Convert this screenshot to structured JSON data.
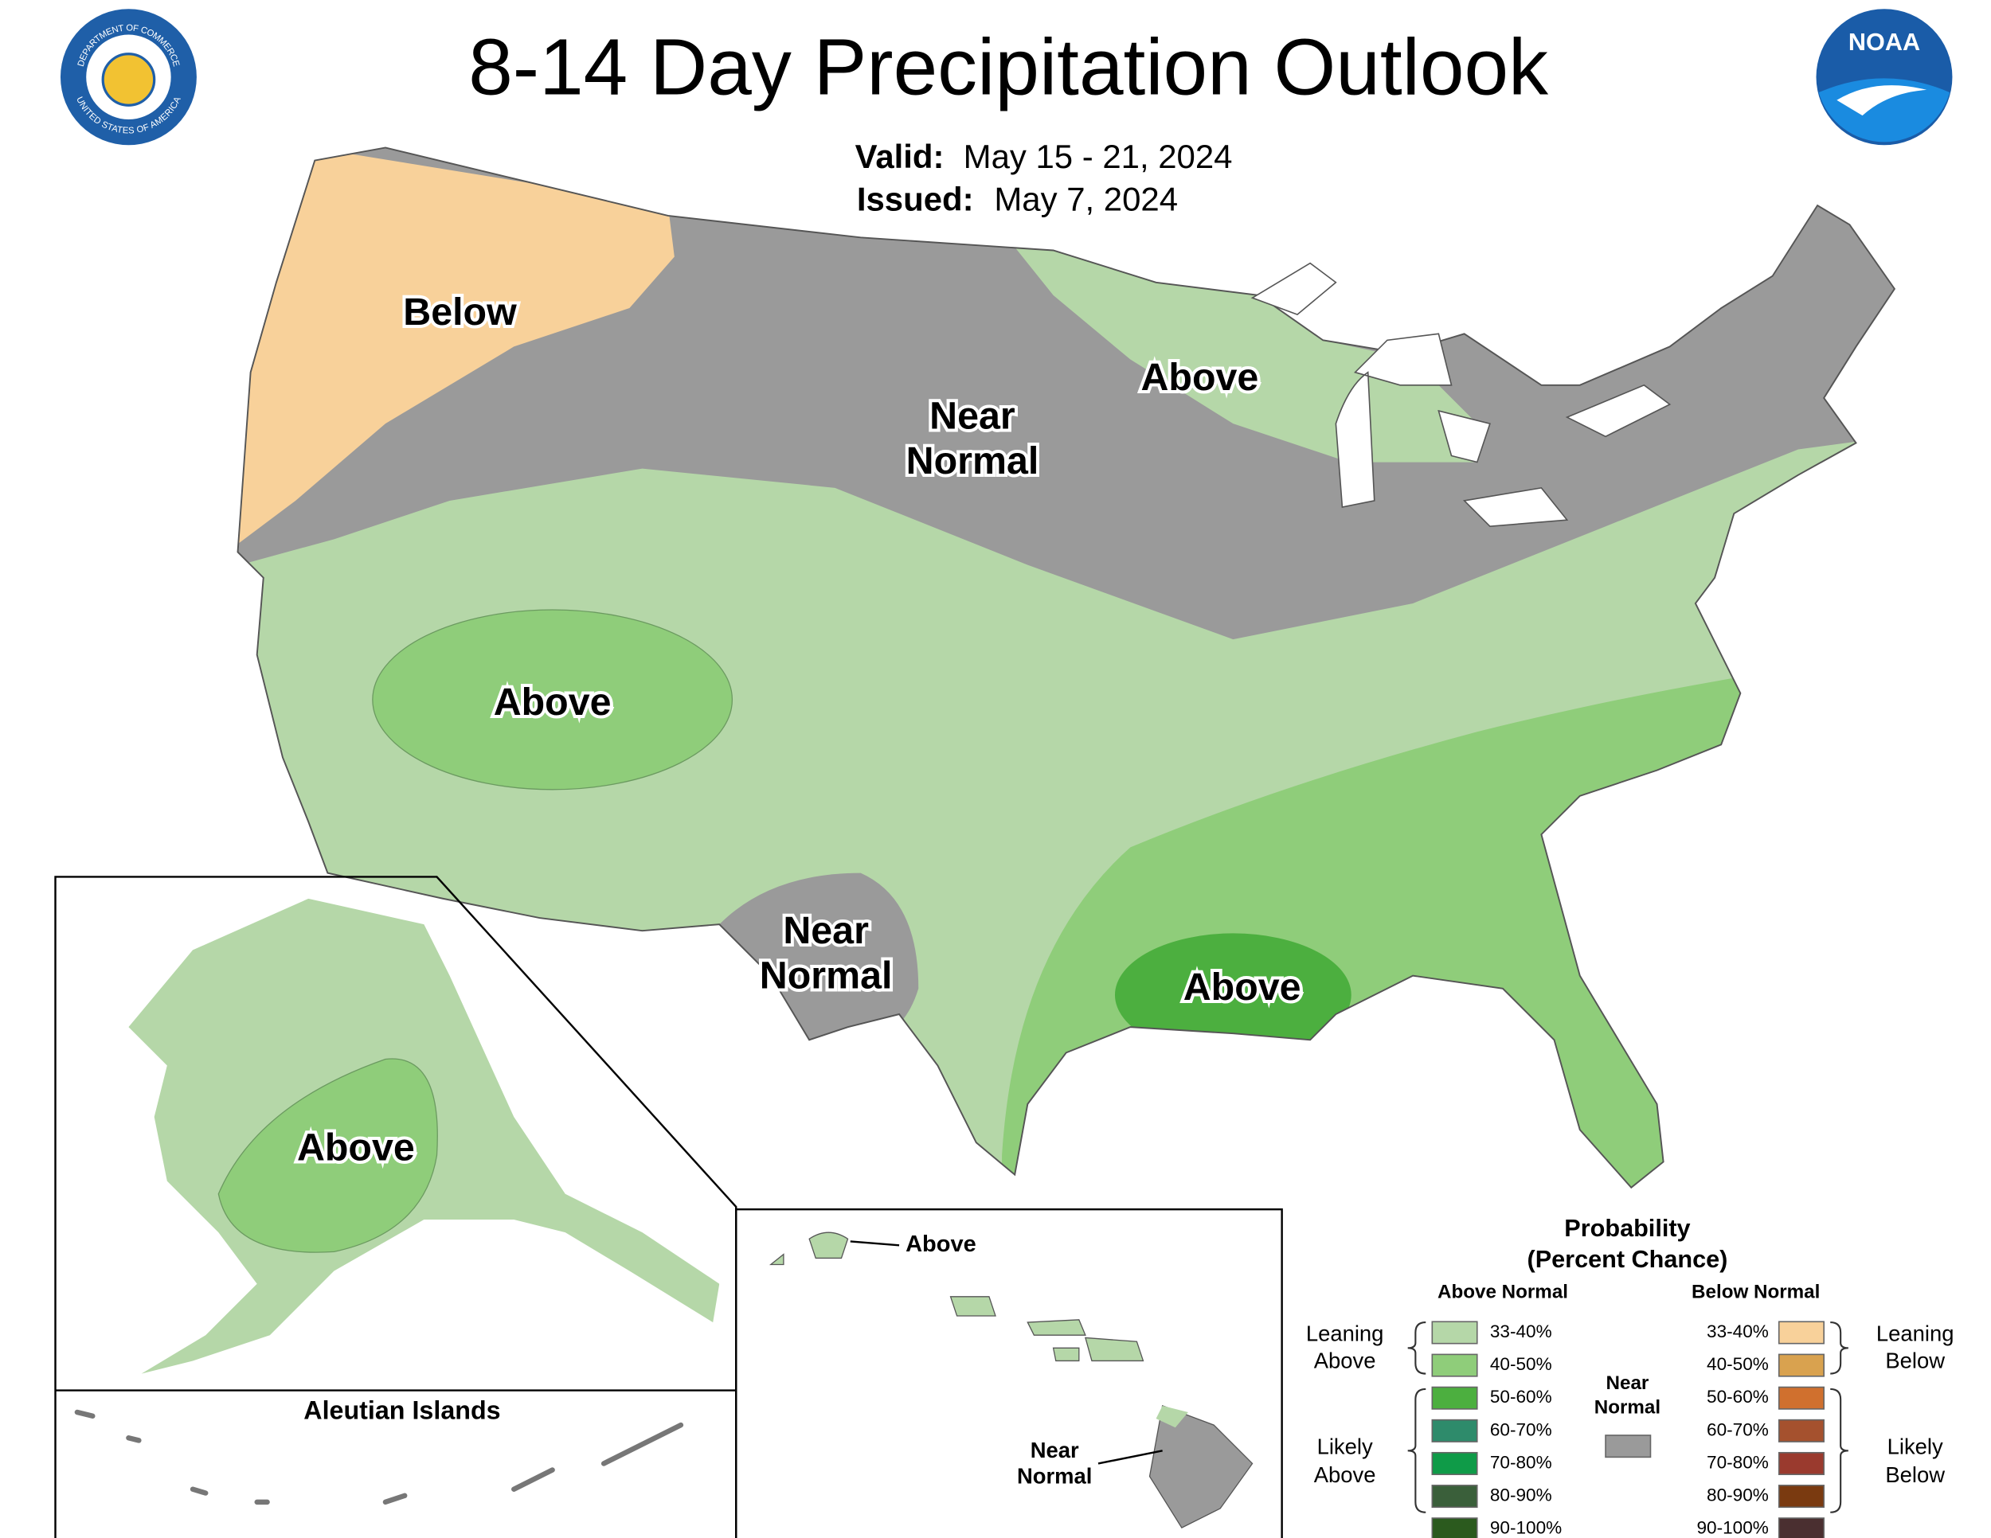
{
  "header": {
    "title": "8-14 Day Precipitation Outlook",
    "valid_label": "Valid:",
    "valid_dates": "May 15 - 21, 2024",
    "issued_label": "Issued:",
    "issued_date": "May 7, 2024"
  },
  "logos": {
    "seal_top": "DEPARTMENT OF COMMERCE",
    "seal_bottom": "UNITED STATES OF AMERICA",
    "noaa": "NOAA"
  },
  "map": {
    "labels": [
      {
        "lines": [
          "Below"
        ]
      },
      {
        "lines": [
          "Near",
          "Normal"
        ]
      },
      {
        "lines": [
          "Above"
        ]
      },
      {
        "lines": [
          "Above"
        ]
      },
      {
        "lines": [
          "Near",
          "Normal"
        ]
      },
      {
        "lines": [
          "Above"
        ]
      }
    ]
  },
  "alaska": {
    "label": "Above"
  },
  "aleutian": {
    "title": "Aleutian Islands"
  },
  "hawaii": {
    "labels": [
      {
        "lines": [
          "Above"
        ]
      },
      {
        "lines": [
          "Near",
          "Normal"
        ]
      }
    ]
  },
  "legend": {
    "title": [
      "Probability",
      "(Percent Chance)"
    ],
    "above_heading": "Above Normal",
    "below_heading": "Below Normal",
    "above": [
      {
        "range": "33-40%",
        "color": "#b5d7a8"
      },
      {
        "range": "40-50%",
        "color": "#8fcd7a"
      },
      {
        "range": "50-60%",
        "color": "#4caf3f"
      },
      {
        "range": "60-70%",
        "color": "#2e8b6b"
      },
      {
        "range": "70-80%",
        "color": "#0f9b48"
      },
      {
        "range": "80-90%",
        "color": "#3a5f3a"
      },
      {
        "range": "90-100%",
        "color": "#2b5a1e"
      }
    ],
    "below": [
      {
        "range": "33-40%",
        "color": "#f8d19a"
      },
      {
        "range": "40-50%",
        "color": "#d9a24f"
      },
      {
        "range": "50-60%",
        "color": "#d0702e"
      },
      {
        "range": "60-70%",
        "color": "#a5512e"
      },
      {
        "range": "70-80%",
        "color": "#9a3a2e"
      },
      {
        "range": "80-90%",
        "color": "#7a3a10"
      },
      {
        "range": "90-100%",
        "color": "#4a2f30"
      }
    ],
    "near_normal": {
      "lines": [
        "Near",
        "Normal"
      ],
      "color": "#9a9a9a"
    },
    "leaning_above": [
      "Leaning",
      "Above"
    ],
    "likely_above": [
      "Likely",
      "Above"
    ],
    "leaning_below": [
      "Leaning",
      "Below"
    ],
    "likely_below": [
      "Likely",
      "Below"
    ]
  }
}
